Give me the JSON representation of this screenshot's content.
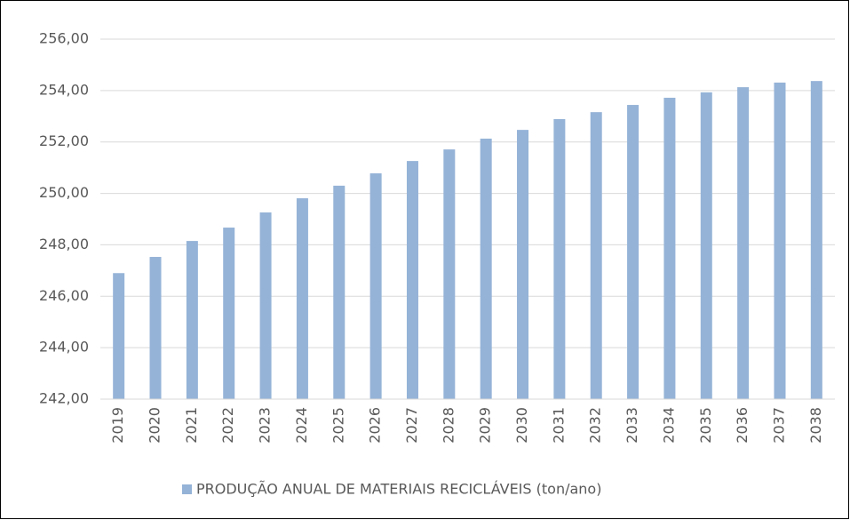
{
  "chart_data": {
    "type": "bar",
    "categories": [
      "2019",
      "2020",
      "2021",
      "2022",
      "2023",
      "2024",
      "2025",
      "2026",
      "2027",
      "2028",
      "2029",
      "2030",
      "2031",
      "2032",
      "2033",
      "2034",
      "2035",
      "2036",
      "2037",
      "2038"
    ],
    "series": [
      {
        "name": "PRODUÇÃO ANUAL DE MATERIAIS RECICLÁVEIS (ton/ano)",
        "color": "#95b3d7",
        "values": [
          246.9,
          247.53,
          248.15,
          248.67,
          249.26,
          249.81,
          250.3,
          250.78,
          251.26,
          251.71,
          252.13,
          252.47,
          252.89,
          253.16,
          253.44,
          253.72,
          253.93,
          254.13,
          254.31,
          254.37
        ]
      }
    ],
    "ylim": [
      242,
      256
    ],
    "yticks": [
      {
        "value": 242,
        "label": "242,00"
      },
      {
        "value": 244,
        "label": "244,00"
      },
      {
        "value": 246,
        "label": "246,00"
      },
      {
        "value": 248,
        "label": "248,00"
      },
      {
        "value": 250,
        "label": "250,00"
      },
      {
        "value": 252,
        "label": "252,00"
      },
      {
        "value": 254,
        "label": "254,00"
      },
      {
        "value": 256,
        "label": "256,00"
      }
    ],
    "grid": true,
    "legend": "bottom"
  }
}
